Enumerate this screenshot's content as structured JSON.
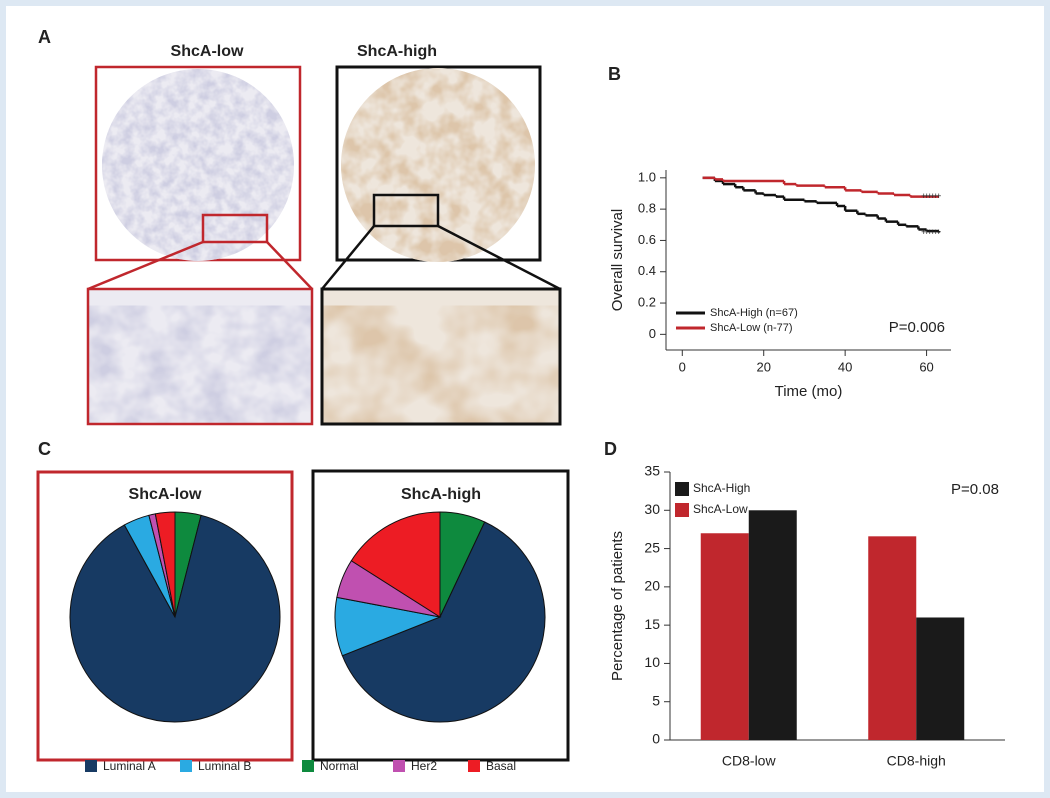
{
  "panel_labels": [
    "A",
    "B",
    "C",
    "D"
  ],
  "images": {
    "titles": [
      "ShcA-low",
      "ShcA-high"
    ]
  },
  "chart_data": [
    {
      "type": "line",
      "drawstyle": "steps-post",
      "xlabel": "Time (mo)",
      "ylabel": "Overall survival",
      "annotation": "P=0.006",
      "xlim": [
        -4,
        66
      ],
      "xticks": [
        0,
        20,
        40,
        60
      ],
      "ylim": [
        -0.1,
        1.05
      ],
      "yticks": [
        0,
        0.2,
        0.4,
        0.6,
        0.8,
        {
          "value": 1,
          "label": "1.0"
        }
      ],
      "series": [
        {
          "name": "ShcA-High (n=67)",
          "color": "#111111",
          "x": [
            5,
            8,
            10,
            13,
            15,
            18,
            20,
            23,
            25,
            30,
            33,
            38,
            40,
            43,
            45,
            48,
            50,
            53,
            55,
            58,
            60,
            63
          ],
          "values": [
            1.0,
            0.98,
            0.96,
            0.94,
            0.92,
            0.9,
            0.89,
            0.88,
            0.86,
            0.85,
            0.84,
            0.82,
            0.79,
            0.77,
            0.76,
            0.74,
            0.72,
            0.7,
            0.69,
            0.67,
            0.66,
            0.65
          ]
        },
        {
          "name": "ShcA-Low (n-77)",
          "color": "#c0272d",
          "x": [
            5,
            8,
            10,
            25,
            28,
            35,
            40,
            44,
            48,
            52,
            56,
            63
          ],
          "values": [
            1.0,
            0.99,
            0.98,
            0.96,
            0.95,
            0.94,
            0.92,
            0.91,
            0.9,
            0.89,
            0.88,
            0.88
          ]
        }
      ]
    },
    {
      "type": "pie",
      "title": "ShcA-low",
      "categories": [
        "Normal",
        "Luminal A",
        "Luminal B",
        "Her2",
        "Basal"
      ],
      "values": [
        4,
        88,
        4,
        1,
        3
      ],
      "colors": [
        "#0e8a3e",
        "#173a63",
        "#2aaae2",
        "#c050b0",
        "#ed1c24"
      ]
    },
    {
      "type": "pie",
      "title": "ShcA-high",
      "categories": [
        "Normal",
        "Luminal A",
        "Luminal B",
        "Her2",
        "Basal"
      ],
      "values": [
        7,
        62,
        9,
        6,
        16
      ],
      "colors": [
        "#0e8a3e",
        "#173a63",
        "#2aaae2",
        "#c050b0",
        "#ed1c24"
      ]
    },
    {
      "type": "bar",
      "ylabel": "Percentage of patients",
      "annotation": "P=0.08",
      "categories": [
        "CD8-low",
        "CD8-high"
      ],
      "ylim": [
        0,
        35
      ],
      "yticks": [
        0,
        5,
        10,
        15,
        20,
        25,
        30,
        35
      ],
      "series": [
        {
          "name": "ShcA-Low",
          "color": "#c0272d",
          "values": [
            27,
            26.6
          ]
        },
        {
          "name": "ShcA-High",
          "color": "#1a1a1a",
          "values": [
            30,
            16
          ]
        }
      ]
    }
  ]
}
